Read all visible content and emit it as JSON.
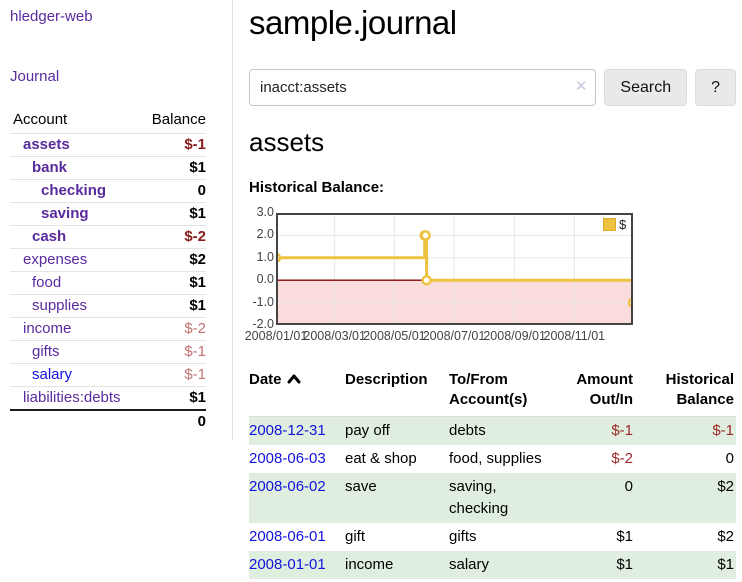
{
  "sidebar": {
    "brand": "hledger-web",
    "nav_journal": "Journal",
    "accounts": {
      "headers": {
        "account": "Account",
        "balance": "Balance"
      },
      "rows": [
        {
          "name": "assets",
          "depth": 1,
          "bold": true,
          "link_color": "purple",
          "balance": "$-1",
          "negative": true
        },
        {
          "name": "bank",
          "depth": 2,
          "bold": true,
          "link_color": "purple",
          "balance": "$1",
          "negative": false
        },
        {
          "name": "checking",
          "depth": 3,
          "bold": true,
          "link_color": "purple",
          "balance": "0",
          "negative": false
        },
        {
          "name": "saving",
          "depth": 3,
          "bold": true,
          "link_color": "purple",
          "balance": "$1",
          "negative": false
        },
        {
          "name": "cash",
          "depth": 2,
          "bold": true,
          "link_color": "purple",
          "balance": "$-2",
          "negative": true
        },
        {
          "name": "expenses",
          "depth": 1,
          "bold": false,
          "link_color": "purple",
          "balance": "$2",
          "negative": false
        },
        {
          "name": "food",
          "depth": 2,
          "bold": false,
          "link_color": "purple",
          "balance": "$1",
          "negative": false
        },
        {
          "name": "supplies",
          "depth": 2,
          "bold": false,
          "link_color": "purple",
          "balance": "$1",
          "negative": false
        },
        {
          "name": "income",
          "depth": 1,
          "bold": false,
          "link_color": "purple",
          "balance": "$-2",
          "negative": true
        },
        {
          "name": "gifts",
          "depth": 2,
          "bold": false,
          "link_color": "purple",
          "balance": "$-1",
          "negative": true
        },
        {
          "name": "salary",
          "depth": 2,
          "bold": false,
          "link_color": "blue",
          "balance": "$-1",
          "negative": true
        },
        {
          "name": "liabilities:debts",
          "depth": 1,
          "bold": false,
          "link_color": "purple",
          "balance": "$1",
          "negative": false
        }
      ],
      "total": "0"
    }
  },
  "main": {
    "title": "sample.journal",
    "search": {
      "value": "inacct:assets",
      "clear_icon": "✕",
      "search_label": "Search",
      "help_label": "?"
    },
    "account_heading": "assets",
    "chart_label": "Historical Balance:",
    "register": {
      "headers": [
        {
          "line1": "Date",
          "line2": "",
          "align": "left",
          "sortable": true
        },
        {
          "line1": "Description",
          "line2": "",
          "align": "left"
        },
        {
          "line1": "To/From",
          "line2": "Account(s)",
          "align": "left"
        },
        {
          "line1": "Amount",
          "line2": "Out/In",
          "align": "right"
        },
        {
          "line1": "Historical",
          "line2": "Balance",
          "align": "right"
        }
      ],
      "rows": [
        {
          "date": "2008-12-31",
          "description": "pay off",
          "accounts": "debts",
          "amount": "$-1",
          "amount_negative": true,
          "balance": "$-1",
          "balance_negative": true
        },
        {
          "date": "2008-06-03",
          "description": "eat & shop",
          "accounts": "food, supplies",
          "amount": "$-2",
          "amount_negative": true,
          "balance": "0",
          "balance_negative": false
        },
        {
          "date": "2008-06-02",
          "description": "save",
          "accounts": "saving, checking",
          "amount": "0",
          "amount_negative": false,
          "balance": "$2",
          "balance_negative": false
        },
        {
          "date": "2008-06-01",
          "description": "gift",
          "accounts": "gifts",
          "amount": "$1",
          "amount_negative": false,
          "balance": "$2",
          "balance_negative": false
        },
        {
          "date": "2008-01-01",
          "description": "income",
          "accounts": "salary",
          "amount": "$1",
          "amount_negative": false,
          "balance": "$1",
          "balance_negative": false
        }
      ]
    }
  },
  "chart_data": {
    "type": "line",
    "step": true,
    "title": "Historical Balance",
    "series": [
      {
        "name": "$",
        "color": "#edc240",
        "points": [
          [
            "2008-01-01",
            1
          ],
          [
            "2008-06-01",
            2
          ],
          [
            "2008-06-02",
            2
          ],
          [
            "2008-06-03",
            0
          ],
          [
            "2008-12-31",
            -1
          ]
        ]
      }
    ],
    "xrange": [
      "2008-01-01",
      "2008-12-31"
    ],
    "ylim": [
      -2,
      3
    ],
    "yticks": [
      3.0,
      2.0,
      1.0,
      0.0,
      -1.0,
      -2.0
    ],
    "xticks": [
      "2008/01/01",
      "2008/03/01",
      "2008/05/01",
      "2008/07/01",
      "2008/09/01",
      "2008/11/01"
    ],
    "legend_position": "top-right",
    "grid": true,
    "grid_color": "#e8e8e8",
    "border_color": "#444444",
    "zero_line_color": "#8b0000",
    "negative_region_color": "#fbdcdc"
  },
  "colors": {
    "link_purple": "#5a2b9d",
    "link_blue": "#1212dd",
    "negative_bold": "#8b1c1c",
    "negative_soft": "#c17472",
    "negative_table": "#9e2a2b",
    "row_green": "#dfeede",
    "accent_gold": "#edc240"
  }
}
